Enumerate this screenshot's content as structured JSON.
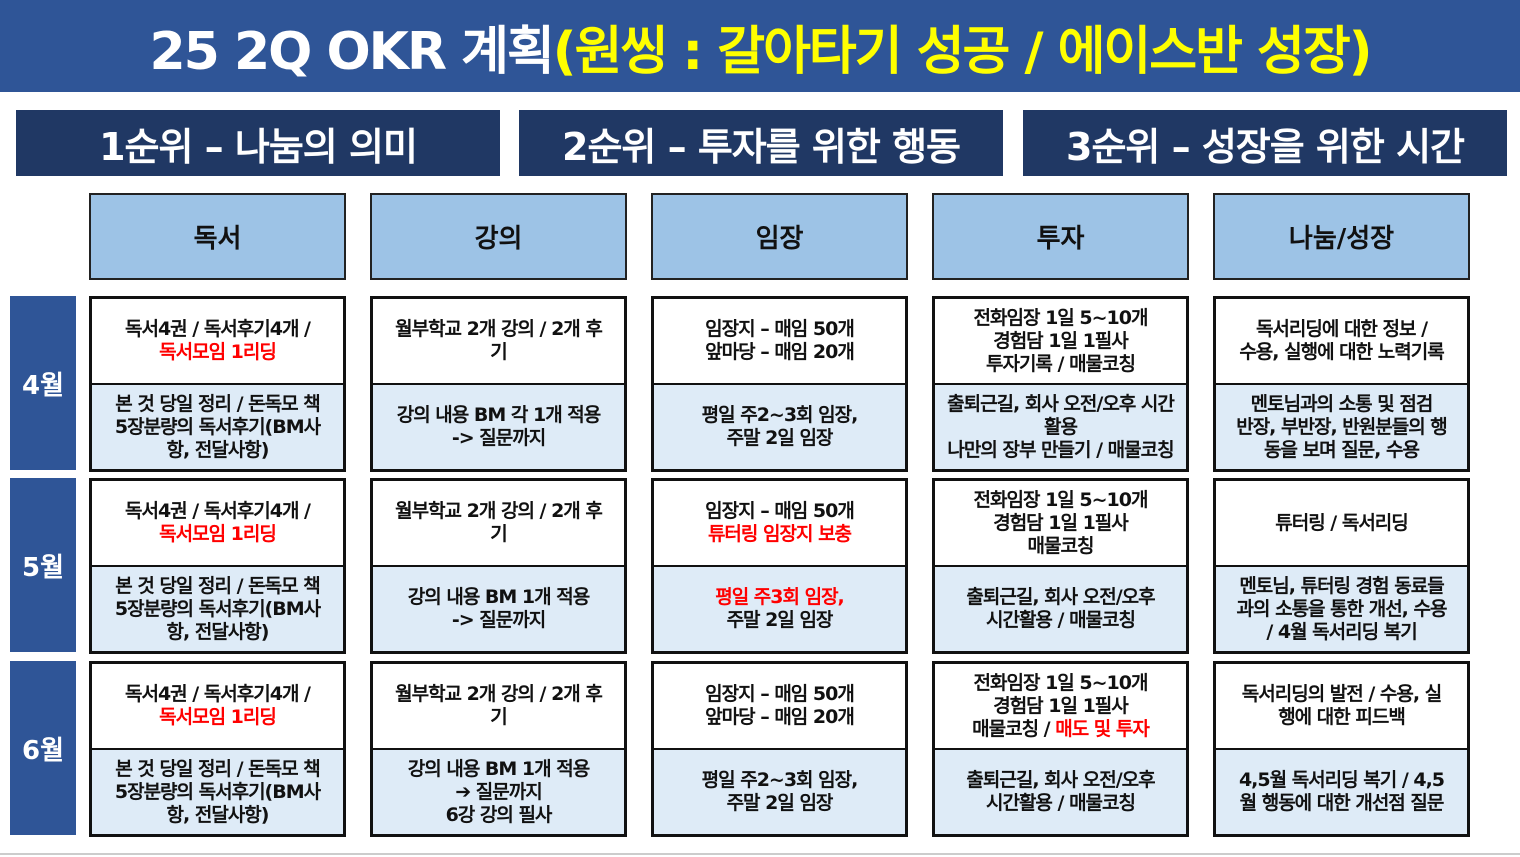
{
  "title": {
    "white": "25 2Q OKR 계획",
    "yellow": "(원씽 : 갈아타기 성공 / 에이스반 성장)"
  },
  "colors": {
    "title_bg": "#2F5597",
    "priority_bg": "#203864",
    "header_bg": "#9DC3E6",
    "sub_bg": "#DEEBF7",
    "highlight": "#FF0000",
    "title_accent": "#FFFF00"
  },
  "priorities": [
    "1순위 – 나눔의 의미",
    "2순위 – 투자를 위한 행동",
    "3순위 – 성장을 위한 시간"
  ],
  "columns": [
    "독서",
    "강의",
    "임장",
    "투자",
    "나눔/성장"
  ],
  "months": [
    {
      "label": "4월",
      "cells": [
        {
          "top": [
            [
              {
                "t": "독서4권 / 독서후기4개 /"
              }
            ],
            [
              {
                "t": "독서모임 1리딩",
                "red": true
              }
            ]
          ],
          "bot": [
            [
              {
                "t": "본 것 당일 정리 / 돈독모 책"
              }
            ],
            [
              {
                "t": "5장분량의 독서후기(BM사"
              }
            ],
            [
              {
                "t": "항, 전달사항)"
              }
            ]
          ]
        },
        {
          "top": [
            [
              {
                "t": "월부학교 2개 강의 / 2개 후"
              }
            ],
            [
              {
                "t": "기"
              }
            ]
          ],
          "bot": [
            [
              {
                "t": "강의 내용 BM 각 1개 적용"
              }
            ],
            [
              {
                "t": "-> 질문까지"
              }
            ]
          ]
        },
        {
          "top": [
            [
              {
                "t": "임장지 – 매임 50개"
              }
            ],
            [
              {
                "t": "앞마당 – 매임 20개"
              }
            ]
          ],
          "bot": [
            [
              {
                "t": "평일 주2~3회 임장,"
              }
            ],
            [
              {
                "t": "주말 2일 임장"
              }
            ]
          ]
        },
        {
          "top": [
            [
              {
                "t": "전화임장 1일 5~10개"
              }
            ],
            [
              {
                "t": "경험담 1일 1필사"
              }
            ],
            [
              {
                "t": "투자기록 / 매물코칭"
              }
            ]
          ],
          "bot": [
            [
              {
                "t": "출퇴근길, 회사 오전/오후 시간"
              }
            ],
            [
              {
                "t": "활용"
              }
            ],
            [
              {
                "t": "나만의 장부 만들기 / 매물코칭"
              }
            ]
          ]
        },
        {
          "top": [
            [
              {
                "t": "독서리딩에 대한 정보 /"
              }
            ],
            [
              {
                "t": "수용, 실행에 대한 노력기록"
              }
            ]
          ],
          "bot": [
            [
              {
                "t": "멘토님과의 소통 및 점검"
              }
            ],
            [
              {
                "t": "반장, 부반장, 반원분들의 행"
              }
            ],
            [
              {
                "t": "동을 보며 질문, 수용"
              }
            ]
          ]
        }
      ]
    },
    {
      "label": "5월",
      "cells": [
        {
          "top": [
            [
              {
                "t": "독서4권 / 독서후기4개 /"
              }
            ],
            [
              {
                "t": "독서모임 1리딩",
                "red": true
              }
            ]
          ],
          "bot": [
            [
              {
                "t": "본 것 당일 정리 / 돈독모 책"
              }
            ],
            [
              {
                "t": "5장분량의 독서후기(BM사"
              }
            ],
            [
              {
                "t": "항, 전달사항)"
              }
            ]
          ]
        },
        {
          "top": [
            [
              {
                "t": "월부학교 2개 강의 / 2개 후"
              }
            ],
            [
              {
                "t": "기"
              }
            ]
          ],
          "bot": [
            [
              {
                "t": "강의 내용 BM 1개 적용"
              }
            ],
            [
              {
                "t": "-> 질문까지"
              }
            ]
          ]
        },
        {
          "top": [
            [
              {
                "t": "임장지 – 매임 50개"
              }
            ],
            [
              {
                "t": "튜터링 임장지 보충",
                "red": true
              }
            ]
          ],
          "bot": [
            [
              {
                "t": "평일 주3회 임장,",
                "red": true
              }
            ],
            [
              {
                "t": "주말 2일 임장"
              }
            ]
          ]
        },
        {
          "top": [
            [
              {
                "t": "전화임장 1일 5~10개"
              }
            ],
            [
              {
                "t": "경험담 1일 1필사"
              }
            ],
            [
              {
                "t": "매물코칭"
              }
            ]
          ],
          "bot": [
            [
              {
                "t": "출퇴근길, 회사 오전/오후"
              }
            ],
            [
              {
                "t": "시간활용 / 매물코칭"
              }
            ]
          ]
        },
        {
          "top": [
            [
              {
                "t": "튜터링 / 독서리딩"
              }
            ]
          ],
          "bot": [
            [
              {
                "t": "멘토님, 튜터링 경험 동료들"
              }
            ],
            [
              {
                "t": "과의 소통을 통한 개선, 수용"
              }
            ],
            [
              {
                "t": "/ 4월 독서리딩 복기"
              }
            ]
          ]
        }
      ]
    },
    {
      "label": "6월",
      "cells": [
        {
          "top": [
            [
              {
                "t": "독서4권 / 독서후기4개 /"
              }
            ],
            [
              {
                "t": "독서모임 1리딩",
                "red": true
              }
            ]
          ],
          "bot": [
            [
              {
                "t": "본 것 당일 정리 / 돈독모 책"
              }
            ],
            [
              {
                "t": "5장분량의 독서후기(BM사"
              }
            ],
            [
              {
                "t": "항, 전달사항)"
              }
            ]
          ]
        },
        {
          "top": [
            [
              {
                "t": "월부학교 2개 강의 / 2개 후"
              }
            ],
            [
              {
                "t": "기"
              }
            ]
          ],
          "bot": [
            [
              {
                "t": "강의 내용 BM 1개 적용"
              }
            ],
            [
              {
                "t": "➔ 질문까지"
              }
            ],
            [
              {
                "t": "6강 강의 필사"
              }
            ]
          ]
        },
        {
          "top": [
            [
              {
                "t": "임장지 – 매임 50개"
              }
            ],
            [
              {
                "t": "앞마당 – 매임 20개"
              }
            ]
          ],
          "bot": [
            [
              {
                "t": "평일 주2~3회 임장,"
              }
            ],
            [
              {
                "t": "주말 2일 임장"
              }
            ]
          ]
        },
        {
          "top": [
            [
              {
                "t": "전화임장 1일 5~10개"
              }
            ],
            [
              {
                "t": "경험담 1일 1필사"
              }
            ],
            [
              {
                "t": "매물코칭 / "
              },
              {
                "t": "매도 및 투자",
                "red": true
              }
            ]
          ],
          "bot": [
            [
              {
                "t": "출퇴근길, 회사 오전/오후"
              }
            ],
            [
              {
                "t": "시간활용 / 매물코칭"
              }
            ]
          ]
        },
        {
          "top": [
            [
              {
                "t": "독서리딩의 발전 / 수용, 실"
              }
            ],
            [
              {
                "t": "행에 대한 피드백"
              }
            ]
          ],
          "bot": [
            [
              {
                "t": "4,5월 독서리딩 복기 / 4,5"
              }
            ],
            [
              {
                "t": "월 행동에 대한 개선점 질문"
              }
            ]
          ]
        }
      ]
    }
  ]
}
